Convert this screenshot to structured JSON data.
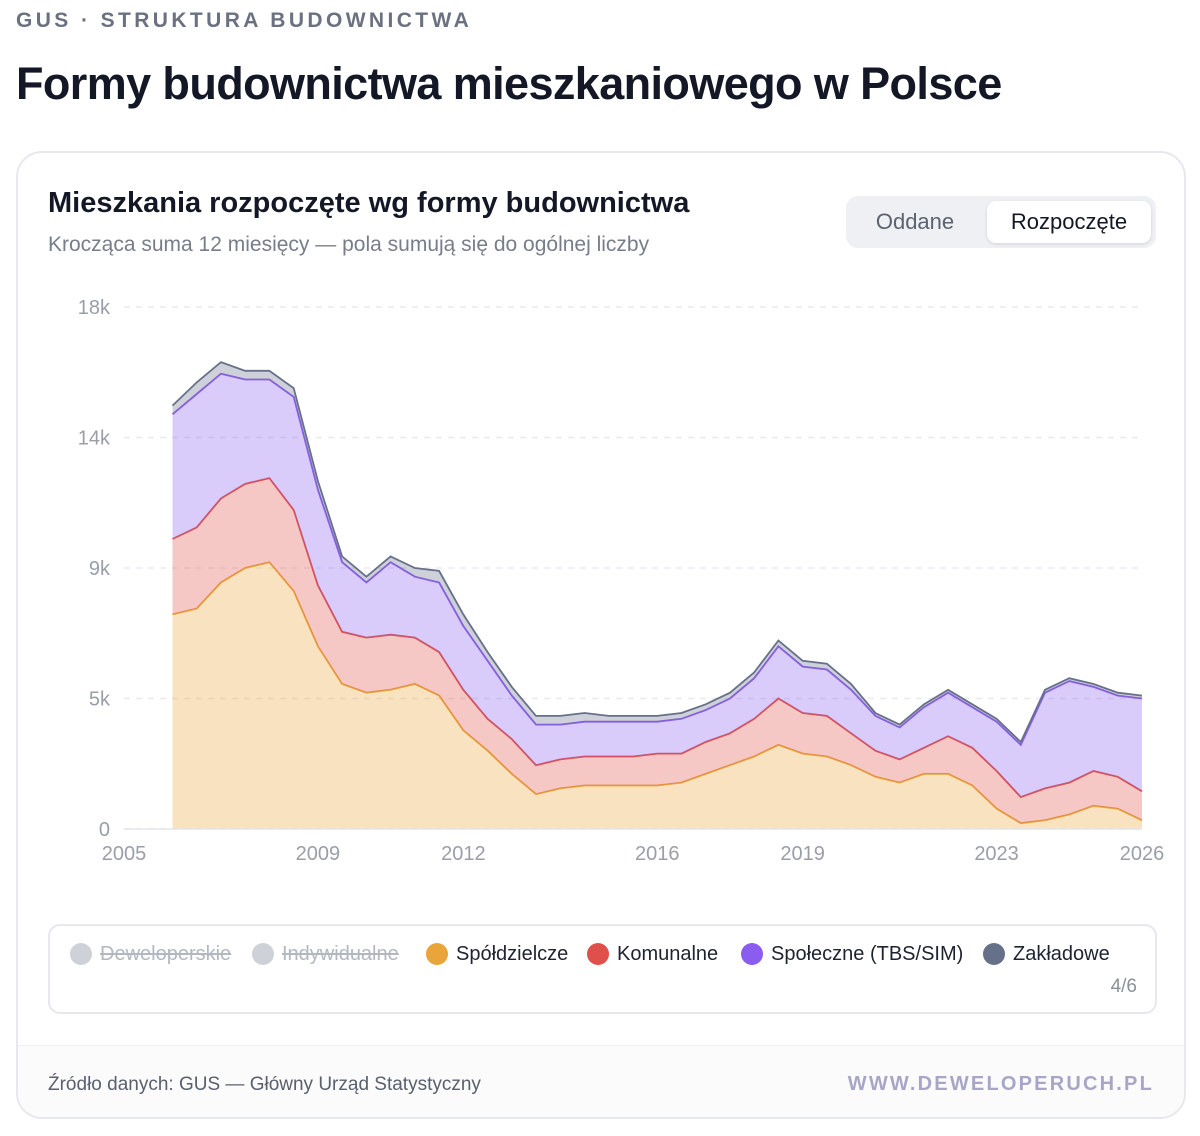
{
  "header": {
    "eyebrow": "GUS · STRUKTURA BUDOWNICTWA",
    "title": "Formy budownictwa mieszkaniowego w Polsce"
  },
  "card": {
    "title": "Mieszkania rozpoczęte wg formy budownictwa",
    "subtitle": "Krocząca suma 12 miesięcy — pola sumują się do ogólnej liczby",
    "toggle": {
      "options": [
        "Oddane",
        "Rozpoczęte"
      ],
      "selected": "Rozpoczęte"
    }
  },
  "legend": {
    "items": [
      {
        "label": "Deweloperskie",
        "color": "#cfd1d8",
        "enabled": false
      },
      {
        "label": "Indywidualne",
        "color": "#cfd1d8",
        "enabled": false
      },
      {
        "label": "Spółdzielcze",
        "color": "#e9a43a",
        "enabled": true
      },
      {
        "label": "Komunalne",
        "color": "#e0504a",
        "enabled": true
      },
      {
        "label": "Społeczne (TBS/SIM)",
        "color": "#8a5cf0",
        "enabled": true
      },
      {
        "label": "Zakładowe",
        "color": "#677089",
        "enabled": true
      }
    ],
    "count": "4/6"
  },
  "footer": {
    "source": "Źródło danych: GUS — Główny Urząd Statystyczny",
    "brand": "WWW.DEWELOPERUCH.PL"
  },
  "chart_data": {
    "type": "area",
    "stacked": true,
    "x_axis": {
      "ticks": [
        "2005",
        "2009",
        "2012",
        "2016",
        "2019",
        "2023",
        "2026"
      ],
      "range": [
        2005,
        2026
      ]
    },
    "y_axis": {
      "ticks": [
        "0",
        "5k",
        "9k",
        "14k",
        "18k"
      ],
      "ylim": [
        0,
        18000
      ]
    },
    "grid": "horizontal-dashed",
    "x": [
      2006.0,
      2006.5,
      2007.0,
      2007.5,
      2008.0,
      2008.5,
      2009.0,
      2009.5,
      2010.0,
      2010.5,
      2011.0,
      2011.5,
      2012.0,
      2012.5,
      2013.0,
      2013.5,
      2014.0,
      2014.5,
      2015.0,
      2015.5,
      2016.0,
      2016.5,
      2017.0,
      2017.5,
      2018.0,
      2018.5,
      2019.0,
      2019.5,
      2020.0,
      2020.5,
      2021.0,
      2021.5,
      2022.0,
      2022.5,
      2023.0,
      2023.5,
      2024.0,
      2024.5,
      2025.0,
      2025.5,
      2026.0
    ],
    "series": [
      {
        "name": "Spółdzielcze",
        "color": "#e9a43a",
        "values": [
          7400,
          7600,
          8500,
          9000,
          9200,
          8200,
          6300,
          5000,
          4700,
          4800,
          5000,
          4600,
          3400,
          2700,
          1900,
          1200,
          1400,
          1500,
          1500,
          1500,
          1500,
          1600,
          1900,
          2200,
          2500,
          2900,
          2600,
          2500,
          2200,
          1800,
          1600,
          1900,
          1900,
          1500,
          700,
          200,
          300,
          500,
          800,
          700,
          300
        ]
      },
      {
        "name": "Komunalne",
        "color": "#e0504a",
        "values": [
          2600,
          2800,
          2900,
          2900,
          2900,
          2800,
          2100,
          1800,
          1900,
          1900,
          1600,
          1500,
          1400,
          1100,
          1200,
          1000,
          1000,
          1000,
          1000,
          1000,
          1100,
          1000,
          1100,
          1100,
          1300,
          1600,
          1400,
          1400,
          1100,
          900,
          800,
          900,
          1300,
          1300,
          1300,
          900,
          1100,
          1100,
          1200,
          1100,
          1000
        ]
      },
      {
        "name": "Społeczne (TBS/SIM)",
        "color": "#8a5cf0",
        "values": [
          4300,
          4600,
          4300,
          3600,
          3400,
          3900,
          3300,
          2400,
          1900,
          2500,
          2100,
          2400,
          2200,
          2000,
          1500,
          1400,
          1200,
          1200,
          1200,
          1200,
          1100,
          1200,
          1100,
          1200,
          1400,
          1800,
          1600,
          1600,
          1500,
          1200,
          1100,
          1400,
          1500,
          1400,
          1700,
          1800,
          3300,
          3500,
          2900,
          2800,
          3200
        ]
      },
      {
        "name": "Zakładowe",
        "color": "#677089",
        "values": [
          300,
          400,
          400,
          300,
          300,
          300,
          300,
          200,
          200,
          200,
          300,
          400,
          400,
          300,
          300,
          300,
          300,
          300,
          200,
          200,
          200,
          200,
          200,
          200,
          200,
          200,
          200,
          200,
          200,
          100,
          100,
          100,
          100,
          100,
          100,
          100,
          100,
          100,
          100,
          100,
          100
        ]
      }
    ]
  }
}
